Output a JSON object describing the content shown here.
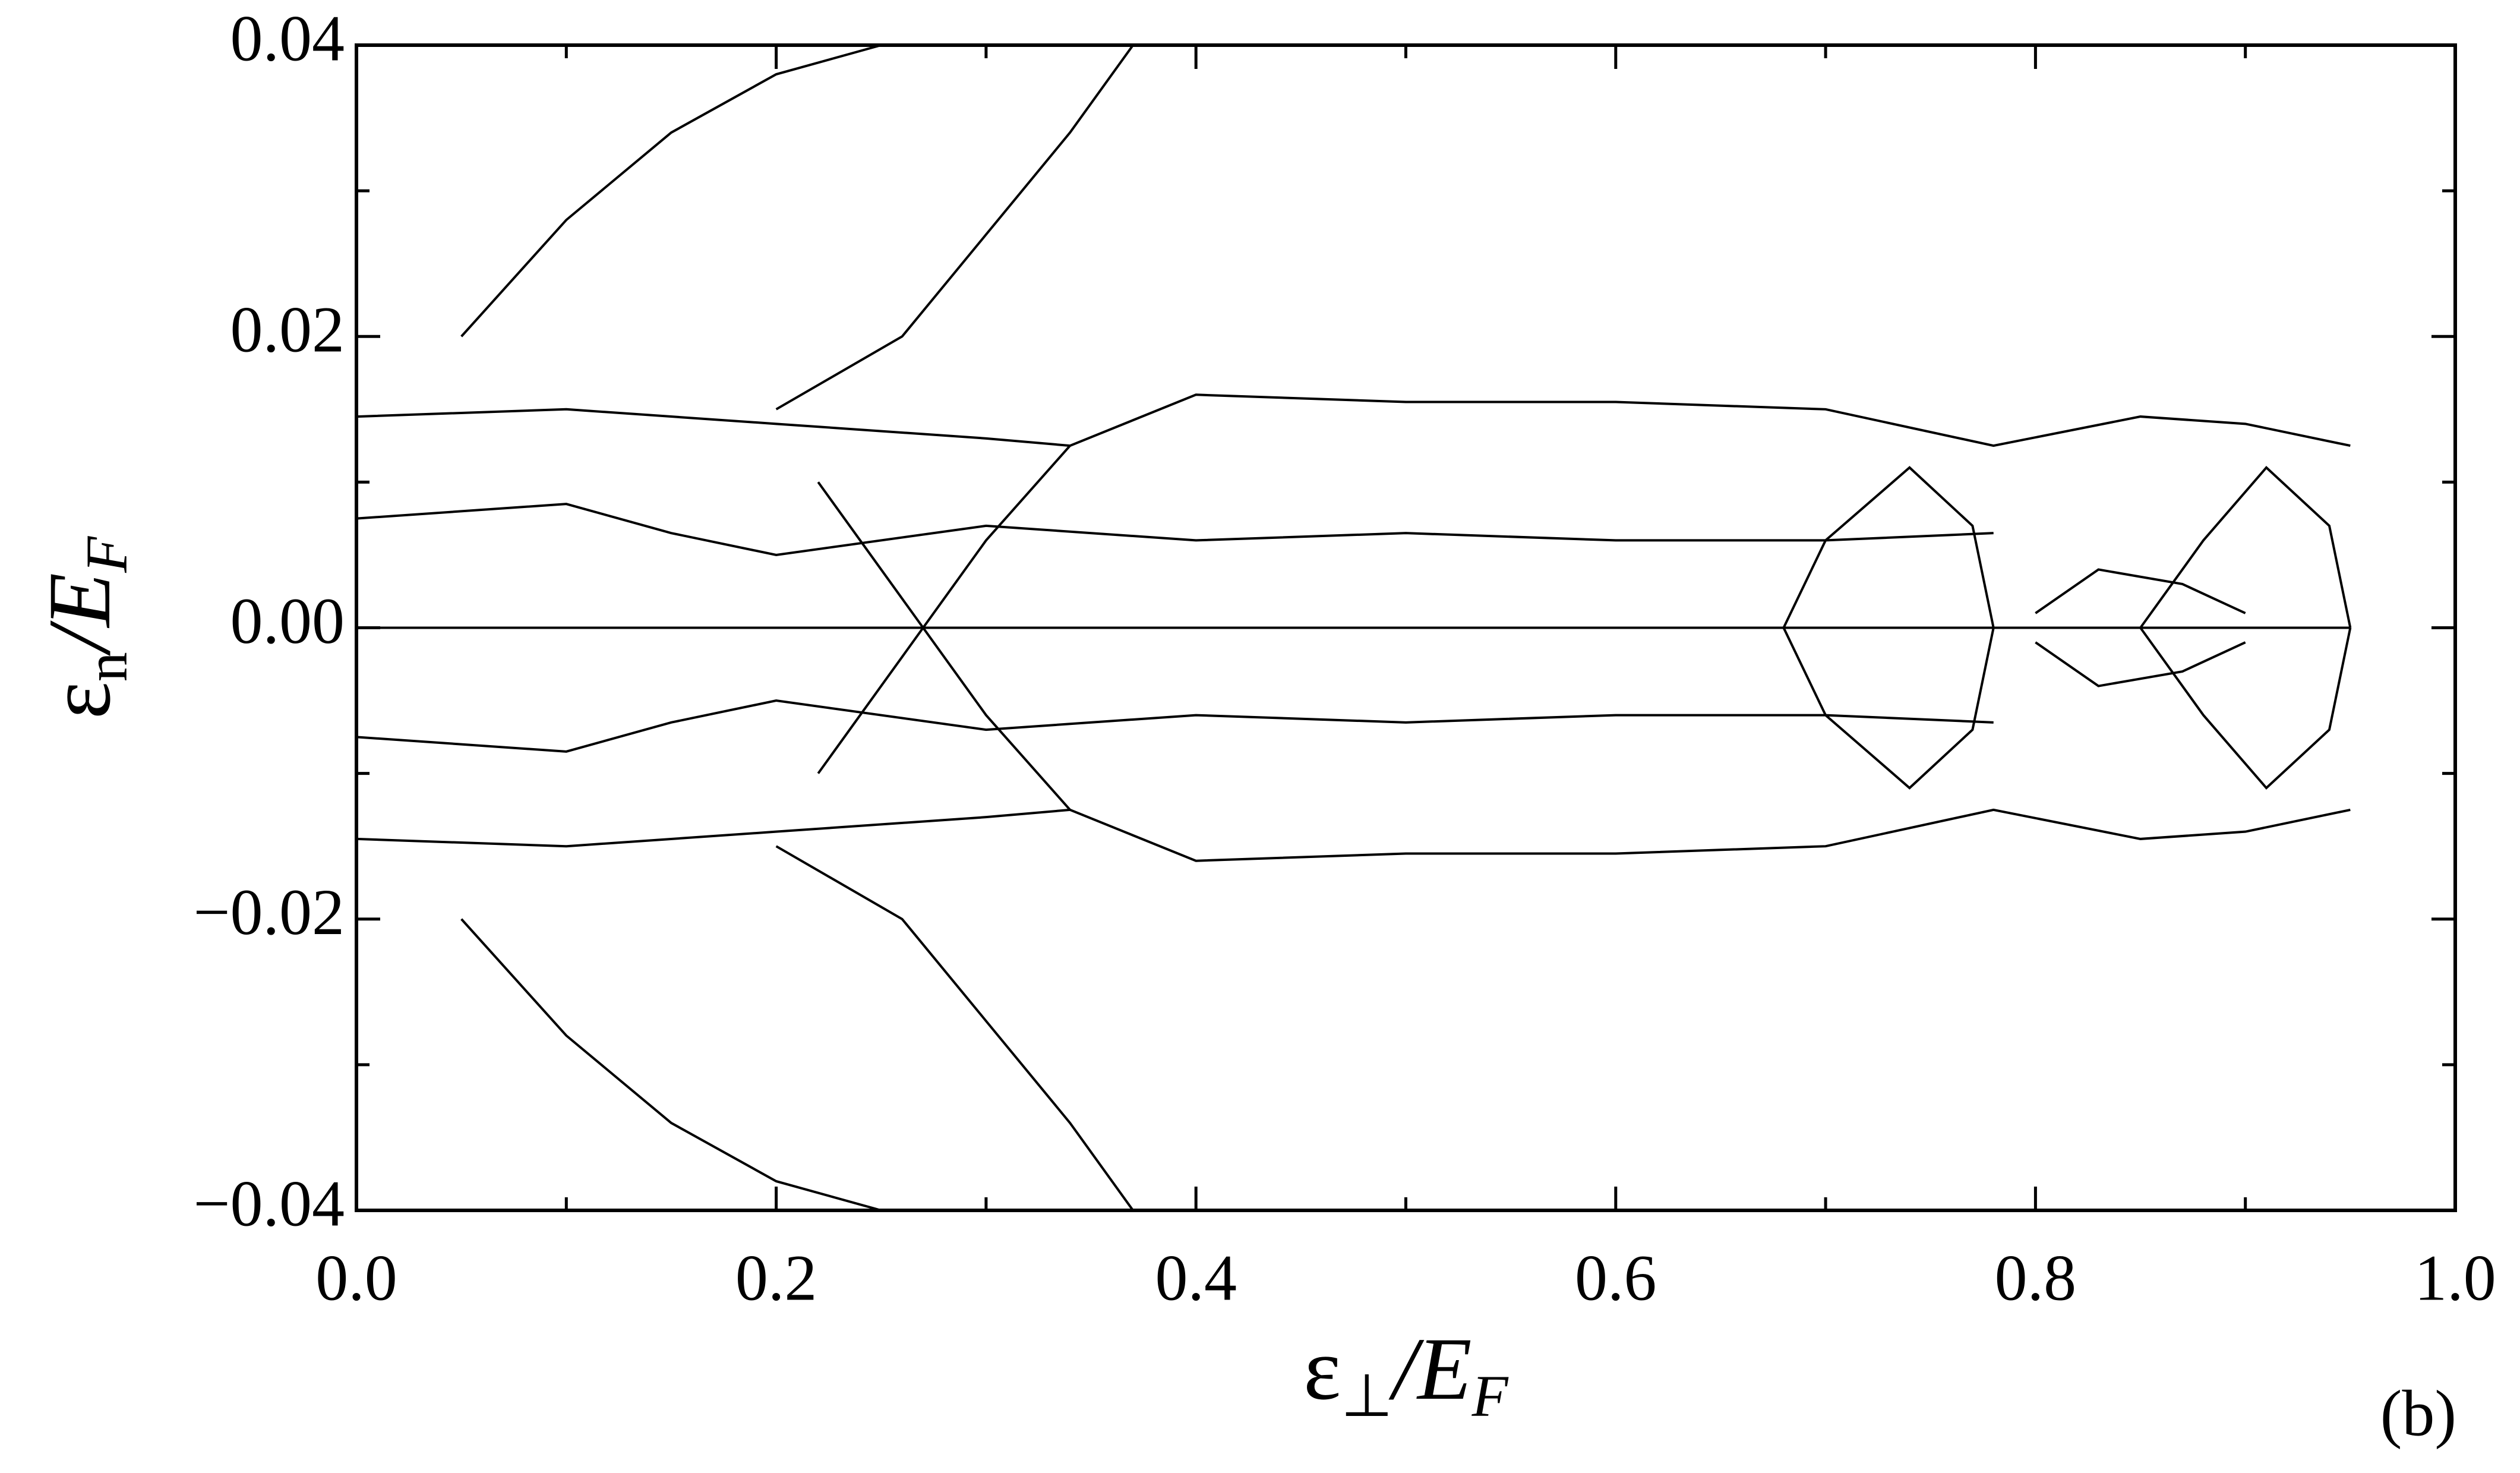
{
  "chart_data": {
    "type": "line",
    "xlabel": [
      "ε",
      "⊥",
      "/E",
      "F"
    ],
    "ylabel": [
      "ε",
      "n",
      "/E",
      "F"
    ],
    "annotation": "(b)",
    "xlim": [
      0,
      1
    ],
    "ylim": [
      -0.04,
      0.04
    ],
    "xticks": [
      {
        "value": 0,
        "label": "0.0"
      },
      {
        "value": 0.2,
        "label": "0.2"
      },
      {
        "value": 0.4,
        "label": "0.4"
      },
      {
        "value": 0.6,
        "label": "0.6"
      },
      {
        "value": 0.8,
        "label": "0.8"
      },
      {
        "value": 1,
        "label": "1.0"
      }
    ],
    "yticks": [
      {
        "value": -0.04,
        "label": "−0.04"
      },
      {
        "value": -0.02,
        "label": "−0.02"
      },
      {
        "value": 0,
        "label": "0.00"
      },
      {
        "value": 0.02,
        "label": "0.02"
      },
      {
        "value": 0.04,
        "label": "0.04"
      }
    ],
    "xminorticks": [
      0.1,
      0.3,
      0.5,
      0.7,
      0.9
    ],
    "yminorticks": [
      -0.03,
      -0.01,
      0.01,
      0.03
    ],
    "grid": false,
    "series": [
      {
        "color": "#000000",
        "x": [
          0,
          0.2,
          0.4,
          0.6,
          0.8,
          0.95
        ],
        "values": [
          0,
          0,
          0,
          0,
          0,
          0
        ]
      },
      {
        "color": "#000000",
        "x": [
          0,
          0.1,
          0.2,
          0.3,
          0.34,
          0.4,
          0.5,
          0.6,
          0.7,
          0.78,
          0.85,
          0.9,
          0.95
        ],
        "values": [
          0.0145,
          0.015,
          0.014,
          0.013,
          0.0125,
          0.016,
          0.0155,
          0.0155,
          0.015,
          0.0125,
          0.0145,
          0.014,
          0.0125
        ]
      },
      {
        "color": "#000000",
        "x": [
          0,
          0.1,
          0.2,
          0.3,
          0.34,
          0.4,
          0.5,
          0.6,
          0.7,
          0.78,
          0.85,
          0.9,
          0.95
        ],
        "values": [
          -0.0145,
          -0.015,
          -0.014,
          -0.013,
          -0.0125,
          -0.016,
          -0.0155,
          -0.0155,
          -0.015,
          -0.0125,
          -0.0145,
          -0.014,
          -0.0125
        ]
      },
      {
        "color": "#000000",
        "x": [
          0,
          0.1,
          0.15,
          0.2,
          0.3,
          0.4,
          0.5,
          0.6,
          0.7,
          0.78
        ],
        "values": [
          0.0075,
          0.0085,
          0.0065,
          0.005,
          0.007,
          0.006,
          0.0065,
          0.006,
          0.006,
          0.0065
        ]
      },
      {
        "color": "#000000",
        "x": [
          0,
          0.1,
          0.15,
          0.2,
          0.3,
          0.4,
          0.5,
          0.6,
          0.7,
          0.78
        ],
        "values": [
          -0.0075,
          -0.0085,
          -0.0065,
          -0.005,
          -0.007,
          -0.006,
          -0.0065,
          -0.006,
          -0.006,
          -0.0065
        ]
      },
      {
        "color": "#000000",
        "x": [
          0.68,
          0.7,
          0.74,
          0.77,
          0.78
        ],
        "values": [
          0,
          0.006,
          0.011,
          0.007,
          0
        ]
      },
      {
        "color": "#000000",
        "x": [
          0.68,
          0.7,
          0.74,
          0.77,
          0.78
        ],
        "values": [
          0,
          -0.006,
          -0.011,
          -0.007,
          0
        ]
      },
      {
        "color": "#000000",
        "x": [
          0.85,
          0.88,
          0.91,
          0.94,
          0.95
        ],
        "values": [
          0,
          0.006,
          0.011,
          0.007,
          0
        ]
      },
      {
        "color": "#000000",
        "x": [
          0.85,
          0.88,
          0.91,
          0.94,
          0.95
        ],
        "values": [
          0,
          -0.006,
          -0.011,
          -0.007,
          0
        ]
      },
      {
        "color": "#000000",
        "x": [
          0.8,
          0.83,
          0.87,
          0.9
        ],
        "values": [
          0.001,
          0.004,
          0.003,
          0.001
        ]
      },
      {
        "color": "#000000",
        "x": [
          0.8,
          0.83,
          0.87,
          0.9
        ],
        "values": [
          -0.001,
          -0.004,
          -0.003,
          -0.001
        ]
      },
      {
        "color": "#000000",
        "x": [
          0.2,
          0.26,
          0.3,
          0.34,
          0.37
        ],
        "values": [
          0.015,
          0.02,
          0.027,
          0.034,
          0.04
        ]
      },
      {
        "color": "#000000",
        "x": [
          0.2,
          0.26,
          0.3,
          0.34,
          0.37
        ],
        "values": [
          -0.015,
          -0.02,
          -0.027,
          -0.034,
          -0.04
        ]
      },
      {
        "color": "#000000",
        "x": [
          0.05,
          0.1,
          0.15,
          0.2,
          0.25
        ],
        "values": [
          0.02,
          0.028,
          0.034,
          0.038,
          0.04
        ]
      },
      {
        "color": "#000000",
        "x": [
          0.05,
          0.1,
          0.15,
          0.2,
          0.25
        ],
        "values": [
          -0.02,
          -0.028,
          -0.034,
          -0.038,
          -0.04
        ]
      },
      {
        "color": "#000000",
        "x": [
          0.22,
          0.26,
          0.3,
          0.34
        ],
        "values": [
          0.01,
          0.002,
          -0.006,
          -0.0125
        ]
      },
      {
        "color": "#000000",
        "x": [
          0.22,
          0.26,
          0.3,
          0.34
        ],
        "values": [
          -0.01,
          -0.002,
          0.006,
          0.0125
        ]
      }
    ]
  }
}
